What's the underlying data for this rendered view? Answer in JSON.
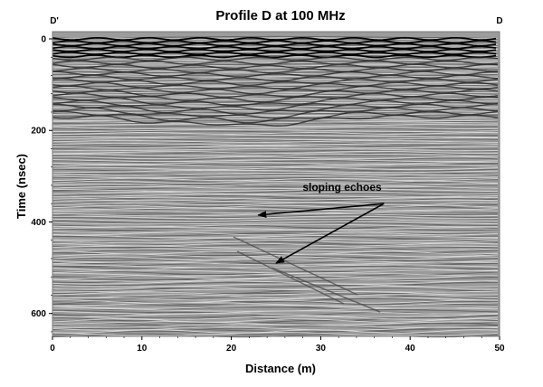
{
  "chart_data": {
    "type": "heatmap",
    "title": "Profile D at 100 MHz",
    "xlabel": "Distance (m)",
    "ylabel": "Time (nsec)",
    "xlim": [
      0,
      50
    ],
    "ylim": [
      0,
      650
    ],
    "y_inverted": true,
    "x_ticks": [
      0,
      10,
      20,
      30,
      40,
      50
    ],
    "y_ticks": [
      0,
      200,
      400,
      600
    ],
    "x_tick_labels": [
      "0",
      "10",
      "20",
      "30",
      "40",
      "50"
    ],
    "y_tick_labels": [
      "0",
      "200",
      "400",
      "600"
    ],
    "end_labels": {
      "left": "D'",
      "right": "D"
    },
    "colormap": "grayscale",
    "grid": false,
    "annotations": [
      {
        "text": "sloping echoes",
        "arrows": [
          {
            "from": [
              31,
              360
            ],
            "to": [
              23,
              385
            ]
          },
          {
            "from": [
              31,
              360
            ],
            "to": [
              25,
              490
            ]
          }
        ]
      }
    ]
  }
}
